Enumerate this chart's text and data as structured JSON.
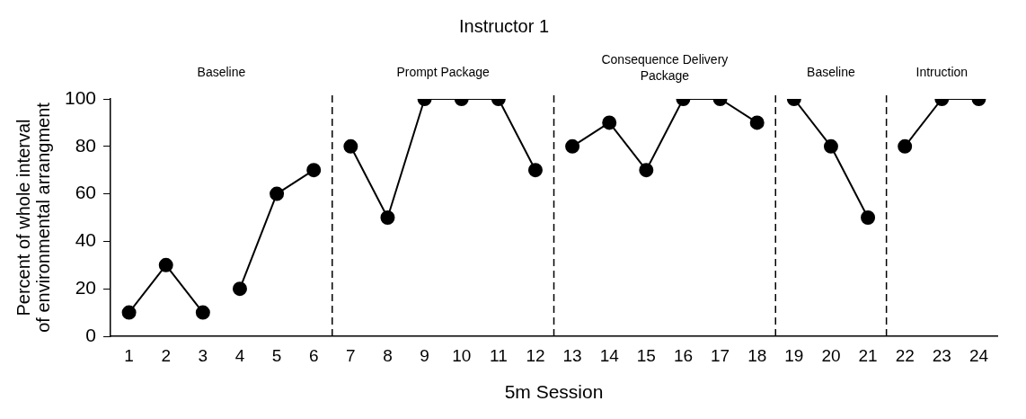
{
  "chart_data": {
    "type": "line",
    "title": "Instructor 1",
    "xlabel": "5m Session",
    "ylabel": "Percent of whole interval of environmental arrangment",
    "xlim": [
      0.5,
      24.5
    ],
    "xticks": [
      1,
      2,
      3,
      4,
      5,
      6,
      7,
      8,
      9,
      10,
      11,
      12,
      13,
      14,
      15,
      16,
      17,
      18,
      19,
      20,
      21,
      22,
      23,
      24
    ],
    "ylim": [
      0,
      100
    ],
    "yticks": [
      0,
      20,
      40,
      60,
      80,
      100
    ],
    "grid": false,
    "legend": false,
    "marker": "circle",
    "line_style": "solid",
    "series": [
      {
        "color": "#000000",
        "x": [
          1,
          2,
          3
        ],
        "values": [
          10,
          30,
          10
        ]
      },
      {
        "color": "#000000",
        "x": [
          4,
          5,
          6
        ],
        "values": [
          20,
          60,
          70
        ]
      },
      {
        "color": "#000000",
        "x": [
          7,
          8,
          9,
          10,
          11,
          12
        ],
        "values": [
          80,
          50,
          100,
          100,
          100,
          70
        ]
      },
      {
        "color": "#000000",
        "x": [
          13,
          14,
          15,
          16,
          17,
          18
        ],
        "values": [
          80,
          90,
          70,
          100,
          100,
          90
        ]
      },
      {
        "color": "#000000",
        "x": [
          19,
          20,
          21
        ],
        "values": [
          100,
          80,
          50
        ]
      },
      {
        "color": "#000000",
        "x": [
          22,
          23,
          24
        ],
        "values": [
          80,
          100,
          100
        ]
      }
    ],
    "ref_lines": [
      {
        "axis": "x",
        "value": 6.5,
        "line_style": "dashed",
        "color": "#000000"
      },
      {
        "axis": "x",
        "value": 12.5,
        "line_style": "dashed",
        "color": "#000000"
      },
      {
        "axis": "x",
        "value": 18.5,
        "line_style": "dashed",
        "color": "#000000"
      },
      {
        "axis": "x",
        "value": 21.5,
        "line_style": "dashed",
        "color": "#000000"
      }
    ],
    "annotations": [
      "Baseline",
      "Prompt Package",
      "Consequence Delivery Package",
      "Baseline",
      "Intruction"
    ]
  }
}
